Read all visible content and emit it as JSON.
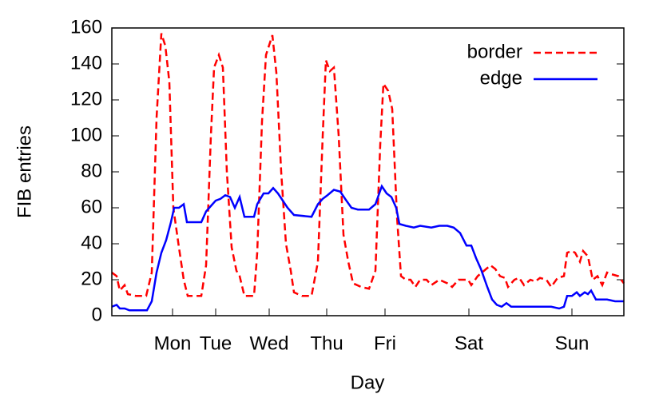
{
  "chart_data": {
    "type": "line",
    "x_label": "Day",
    "y_label": "FIB entries",
    "xlim": [
      0,
      641
    ],
    "xticks": [
      {
        "value": 76,
        "label": "Mon"
      },
      {
        "value": 130,
        "label": "Tue"
      },
      {
        "value": 197,
        "label": "Wed"
      },
      {
        "value": 269,
        "label": "Thu"
      },
      {
        "value": 342,
        "label": "Fri"
      },
      {
        "value": 447,
        "label": "Sat"
      },
      {
        "value": 576,
        "label": "Sun"
      }
    ],
    "ylim": [
      0,
      160
    ],
    "yticks": [
      0,
      20,
      40,
      60,
      80,
      100,
      120,
      140,
      160
    ],
    "legend": "top-right",
    "series": [
      {
        "name": "border",
        "color": "#ff0000",
        "dash": true,
        "x": [
          0,
          6,
          10,
          16,
          20,
          30,
          43,
          50,
          56,
          62,
          67,
          72,
          77,
          84,
          90,
          95,
          112,
          118,
          124,
          128,
          134,
          139,
          144,
          150,
          156,
          160,
          166,
          178,
          182,
          188,
          193,
          201,
          206,
          212,
          218,
          224,
          228,
          238,
          250,
          258,
          264,
          268,
          273,
          278,
          284,
          290,
          296,
          302,
          312,
          322,
          330,
          336,
          340,
          346,
          351,
          357,
          362,
          368,
          374,
          380,
          386,
          394,
          400,
          410,
          420,
          426,
          434,
          446,
          450,
          458,
          466,
          474,
          480,
          486,
          492,
          496,
          504,
          510,
          516,
          524,
          530,
          536,
          544,
          550,
          558,
          566,
          570,
          576,
          580,
          586,
          590,
          596,
          602,
          608,
          614,
          620,
          626,
          634,
          641
        ],
        "values": [
          24,
          22,
          14,
          17,
          12,
          11,
          11,
          24,
          110,
          157,
          150,
          130,
          60,
          38,
          20,
          11,
          11,
          28,
          100,
          138,
          145,
          138,
          80,
          38,
          25,
          22,
          11,
          11,
          35,
          108,
          145,
          156,
          135,
          80,
          40,
          25,
          13,
          11,
          11,
          30,
          100,
          142,
          136,
          138,
          100,
          45,
          30,
          18,
          16,
          15,
          25,
          95,
          129,
          125,
          115,
          55,
          22,
          20,
          20,
          16,
          20,
          20,
          17,
          20,
          18,
          16,
          20,
          20,
          17,
          22,
          25,
          28,
          26,
          22,
          21,
          16,
          20,
          21,
          17,
          20,
          19,
          21,
          20,
          16,
          21,
          22,
          35,
          36,
          35,
          30,
          36,
          33,
          20,
          22,
          17,
          24,
          23,
          22,
          18
        ]
      },
      {
        "name": "edge",
        "color": "#0000ff",
        "dash": false,
        "x": [
          0,
          6,
          10,
          16,
          22,
          38,
          44,
          50,
          56,
          62,
          68,
          74,
          78,
          84,
          90,
          94,
          112,
          118,
          124,
          130,
          136,
          142,
          148,
          154,
          160,
          166,
          178,
          182,
          190,
          196,
          202,
          208,
          214,
          220,
          228,
          250,
          258,
          264,
          270,
          278,
          286,
          292,
          300,
          308,
          322,
          330,
          338,
          344,
          350,
          356,
          360,
          368,
          378,
          386,
          400,
          410,
          420,
          428,
          436,
          444,
          450,
          456,
          462,
          470,
          476,
          482,
          488,
          494,
          500,
          510,
          530,
          550,
          560,
          566,
          570,
          576,
          582,
          586,
          592,
          596,
          600,
          606,
          612,
          620,
          630,
          641
        ],
        "values": [
          5,
          6,
          4,
          4,
          3,
          3,
          3,
          8,
          24,
          35,
          42,
          52,
          60,
          60,
          62,
          52,
          52,
          58,
          61,
          64,
          65,
          67,
          66,
          60,
          66,
          55,
          55,
          62,
          68,
          68,
          71,
          68,
          64,
          60,
          56,
          55,
          62,
          65,
          67,
          70,
          69,
          65,
          60,
          59,
          59,
          62,
          72,
          68,
          66,
          60,
          51,
          50,
          49,
          50,
          49,
          50,
          50,
          49,
          46,
          39,
          39,
          32,
          26,
          16,
          9,
          6,
          5,
          7,
          5,
          5,
          5,
          5,
          4,
          5,
          11,
          11,
          13,
          11,
          13,
          12,
          14,
          9,
          9,
          9,
          8,
          8
        ]
      }
    ]
  }
}
